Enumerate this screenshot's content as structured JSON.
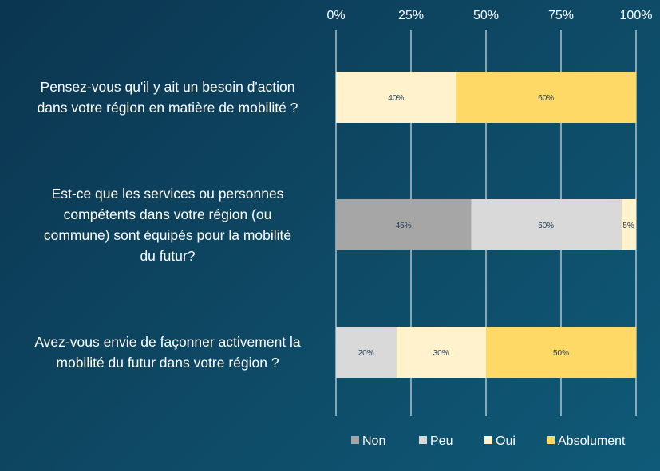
{
  "chart_data": {
    "type": "bar",
    "orientation": "horizontal",
    "stacked": true,
    "percent": true,
    "title": "",
    "xlim": [
      0,
      100
    ],
    "x_ticks": [
      "0%",
      "25%",
      "50%",
      "75%",
      "100%"
    ],
    "x_tick_values": [
      0,
      25,
      50,
      75,
      100
    ],
    "x_axis_position": "top",
    "grid": true,
    "legend_position": "bottom-right",
    "categories": [
      "Pensez-vous qu'il y ait un besoin d'action dans votre région en matière de mobilité ?",
      "Est-ce que les services ou personnes compétents dans votre région (ou commune) sont équipés pour la mobilité du futur?",
      "Avez-vous envie de façonner activement la mobilité du futur dans votre région ?"
    ],
    "category_lines": [
      [
        "Pensez-vous qu'il y ait un besoin d'action",
        "dans votre région en matière de mobilité ?"
      ],
      [
        "Est-ce que les services ou personnes",
        "compétents dans votre région (ou",
        "commune) sont équipés pour la mobilité",
        "du futur?"
      ],
      [
        "Avez-vous envie de façonner activement la",
        "mobilité du futur dans votre région ?"
      ]
    ],
    "series": [
      {
        "name": "Non",
        "color": "#a6a6a6",
        "values": [
          0,
          45,
          0
        ],
        "labels": [
          "",
          "45%",
          ""
        ]
      },
      {
        "name": "Peu",
        "color": "#d9d9d9",
        "values": [
          0,
          50,
          20
        ],
        "labels": [
          "",
          "50%",
          "20%"
        ]
      },
      {
        "name": "Oui",
        "color": "#fff2cc",
        "values": [
          40,
          5,
          30
        ],
        "labels": [
          "40%",
          "5%",
          "30%"
        ]
      },
      {
        "name": "Absolument",
        "color": "#ffd966",
        "values": [
          60,
          0,
          50
        ],
        "labels": [
          "60%",
          "",
          "50%"
        ]
      }
    ]
  },
  "colors": {
    "axis_text": "#ffffff",
    "gridline": "#ffffff",
    "data_label": "#1f3a55"
  }
}
